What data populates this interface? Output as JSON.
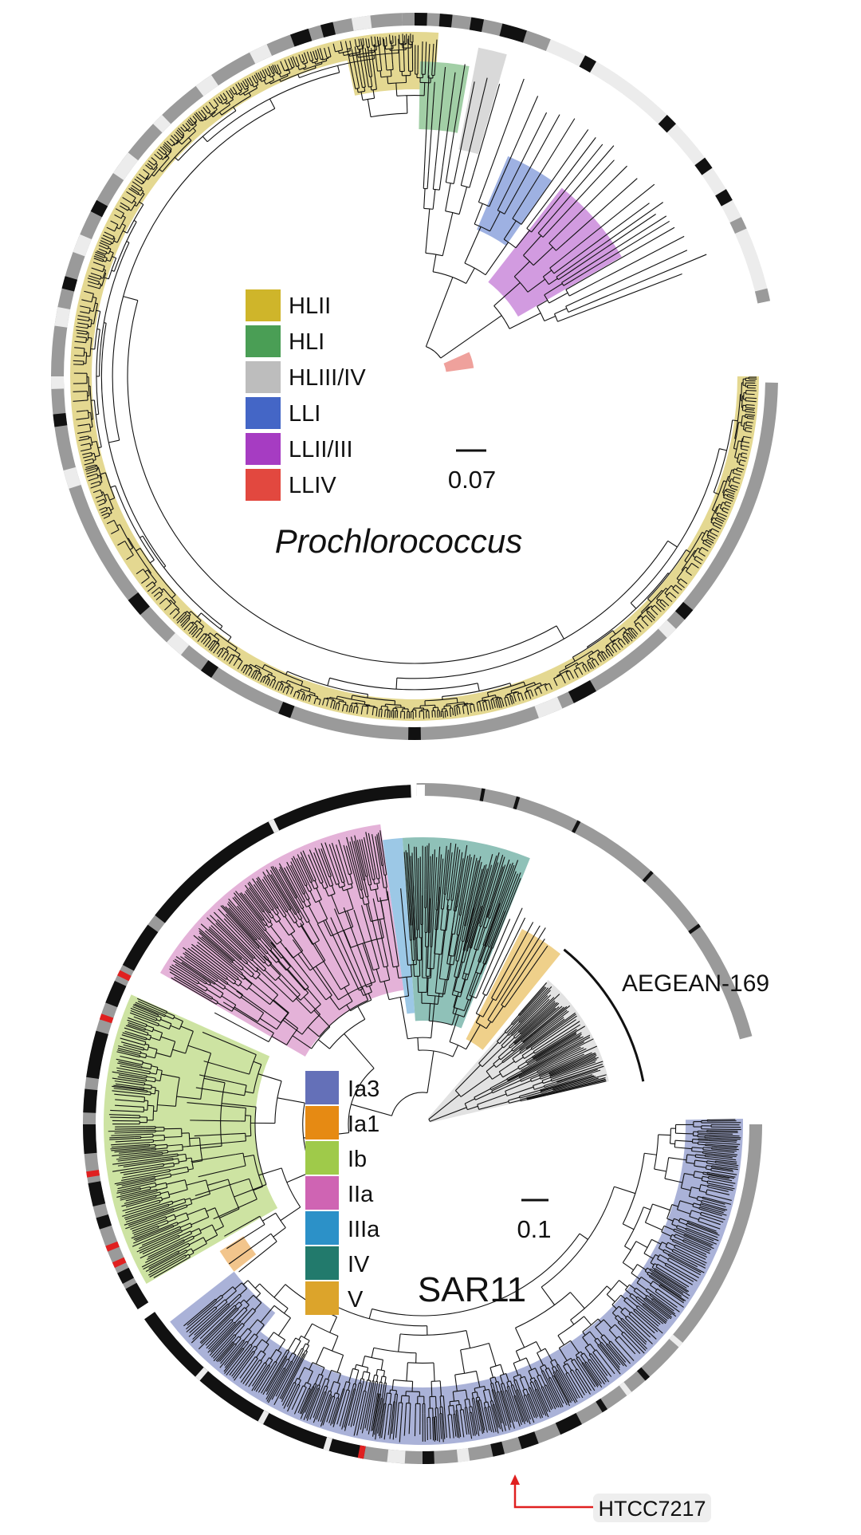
{
  "panels": [
    {
      "name": "prochlorococcus",
      "title": "Prochlorococcus",
      "title_italic": true,
      "scale_bar_label": "0.07",
      "legend": [
        {
          "label": "HLII",
          "color": "#cfb52a"
        },
        {
          "label": "HLI",
          "color": "#4a9e55"
        },
        {
          "label": "HLIII/IV",
          "color": "#bdbdbd"
        },
        {
          "label": "LLI",
          "color": "#4466c6"
        },
        {
          "label": "LLII/III",
          "color": "#a63cc2"
        },
        {
          "label": "LLIV",
          "color": "#e2483f"
        }
      ],
      "clade_fills": {
        "HLII": "#e4d891",
        "HLI": "#a2cfa6",
        "HLIII/IV": "#d9d9d9",
        "LLI": "#9eb1e2",
        "LLII/III": "#d29be0",
        "LLIV": "#efa19c"
      },
      "ring_colors": {
        "light": "#ececec",
        "mid": "#9a9a9a",
        "dark": "#111111"
      }
    },
    {
      "name": "sar11",
      "title": "SAR11",
      "title_italic": false,
      "scale_bar_label": "0.1",
      "arc_label": "AEGEAN-169",
      "callout_label": "HTCC7217",
      "callout_color": "#e02020",
      "legend": [
        {
          "label": "Ia3",
          "color": "#6470b8"
        },
        {
          "label": "Ia1",
          "color": "#e68a13"
        },
        {
          "label": "Ib",
          "color": "#9fca4a"
        },
        {
          "label": "IIa",
          "color": "#cf64b3"
        },
        {
          "label": "IIIa",
          "color": "#2c91c8"
        },
        {
          "label": "IV",
          "color": "#227a6c"
        },
        {
          "label": "V",
          "color": "#dca42b"
        }
      ],
      "clade_fills": {
        "Ia3": "#aab2d8",
        "Ia1": "#f2c58c",
        "Ib": "#cde3a2",
        "IIa": "#e4b2d8",
        "IIIa": "#9cc8e6",
        "IV": "#8fc1b8",
        "V": "#efd08a",
        "AEGEAN-169": "#e2e2e2"
      },
      "ring_colors": {
        "light": "#ececec",
        "mid": "#9a9a9a",
        "dark": "#111111",
        "marker": "#e02020"
      }
    }
  ]
}
